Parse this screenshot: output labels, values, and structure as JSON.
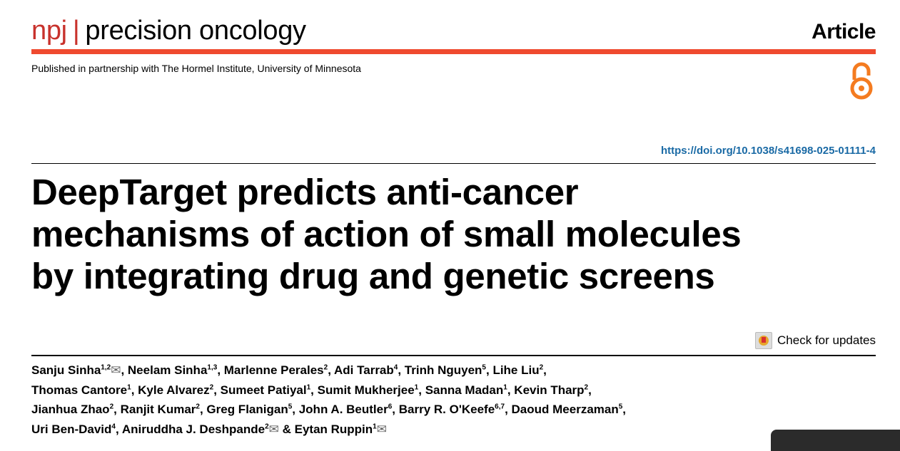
{
  "header": {
    "journal_prefix": "npj",
    "journal_name": "precision oncology",
    "article_type": "Article",
    "partner": "Published in partnership with The Hormel Institute, University of Minnesota",
    "open_access_icon": "open-access-icon"
  },
  "doi": "https://doi.org/10.1038/s41698-025-01111-4",
  "title_lines": [
    "DeepTarget predicts anti-cancer",
    "mechanisms of action of small molecules",
    "by integrating drug and genetic screens"
  ],
  "check_updates": "Check for updates",
  "authors": [
    {
      "name": "Sanju Sinha",
      "aff": "1,2",
      "email": true
    },
    {
      "name": "Neelam Sinha",
      "aff": "1,3"
    },
    {
      "name": "Marlenne Perales",
      "aff": "2"
    },
    {
      "name": "Adi Tarrab",
      "aff": "4"
    },
    {
      "name": "Trinh Nguyen",
      "aff": "5"
    },
    {
      "name": "Lihe Liu",
      "aff": "2",
      "br": true
    },
    {
      "name": "Thomas Cantore",
      "aff": "1"
    },
    {
      "name": "Kyle Alvarez",
      "aff": "2"
    },
    {
      "name": "Sumeet Patiyal",
      "aff": "1"
    },
    {
      "name": "Sumit Mukherjee",
      "aff": "1"
    },
    {
      "name": "Sanna Madan",
      "aff": "1"
    },
    {
      "name": "Kevin Tharp",
      "aff": "2",
      "br": true
    },
    {
      "name": "Jianhua Zhao",
      "aff": "2"
    },
    {
      "name": "Ranjit Kumar",
      "aff": "2"
    },
    {
      "name": "Greg Flanigan",
      "aff": "5"
    },
    {
      "name": "John A. Beutler",
      "aff": "6"
    },
    {
      "name": "Barry R. O'Keefe",
      "aff": "6,7"
    },
    {
      "name": "Daoud Meerzaman",
      "aff": "5",
      "br": true
    },
    {
      "name": "Uri Ben-David",
      "aff": "4"
    },
    {
      "name": "Aniruddha J. Deshpande",
      "aff": "2",
      "email": true,
      "amp": true
    },
    {
      "name": "Eytan Ruppin",
      "aff": "1",
      "email": true,
      "last": true
    }
  ]
}
